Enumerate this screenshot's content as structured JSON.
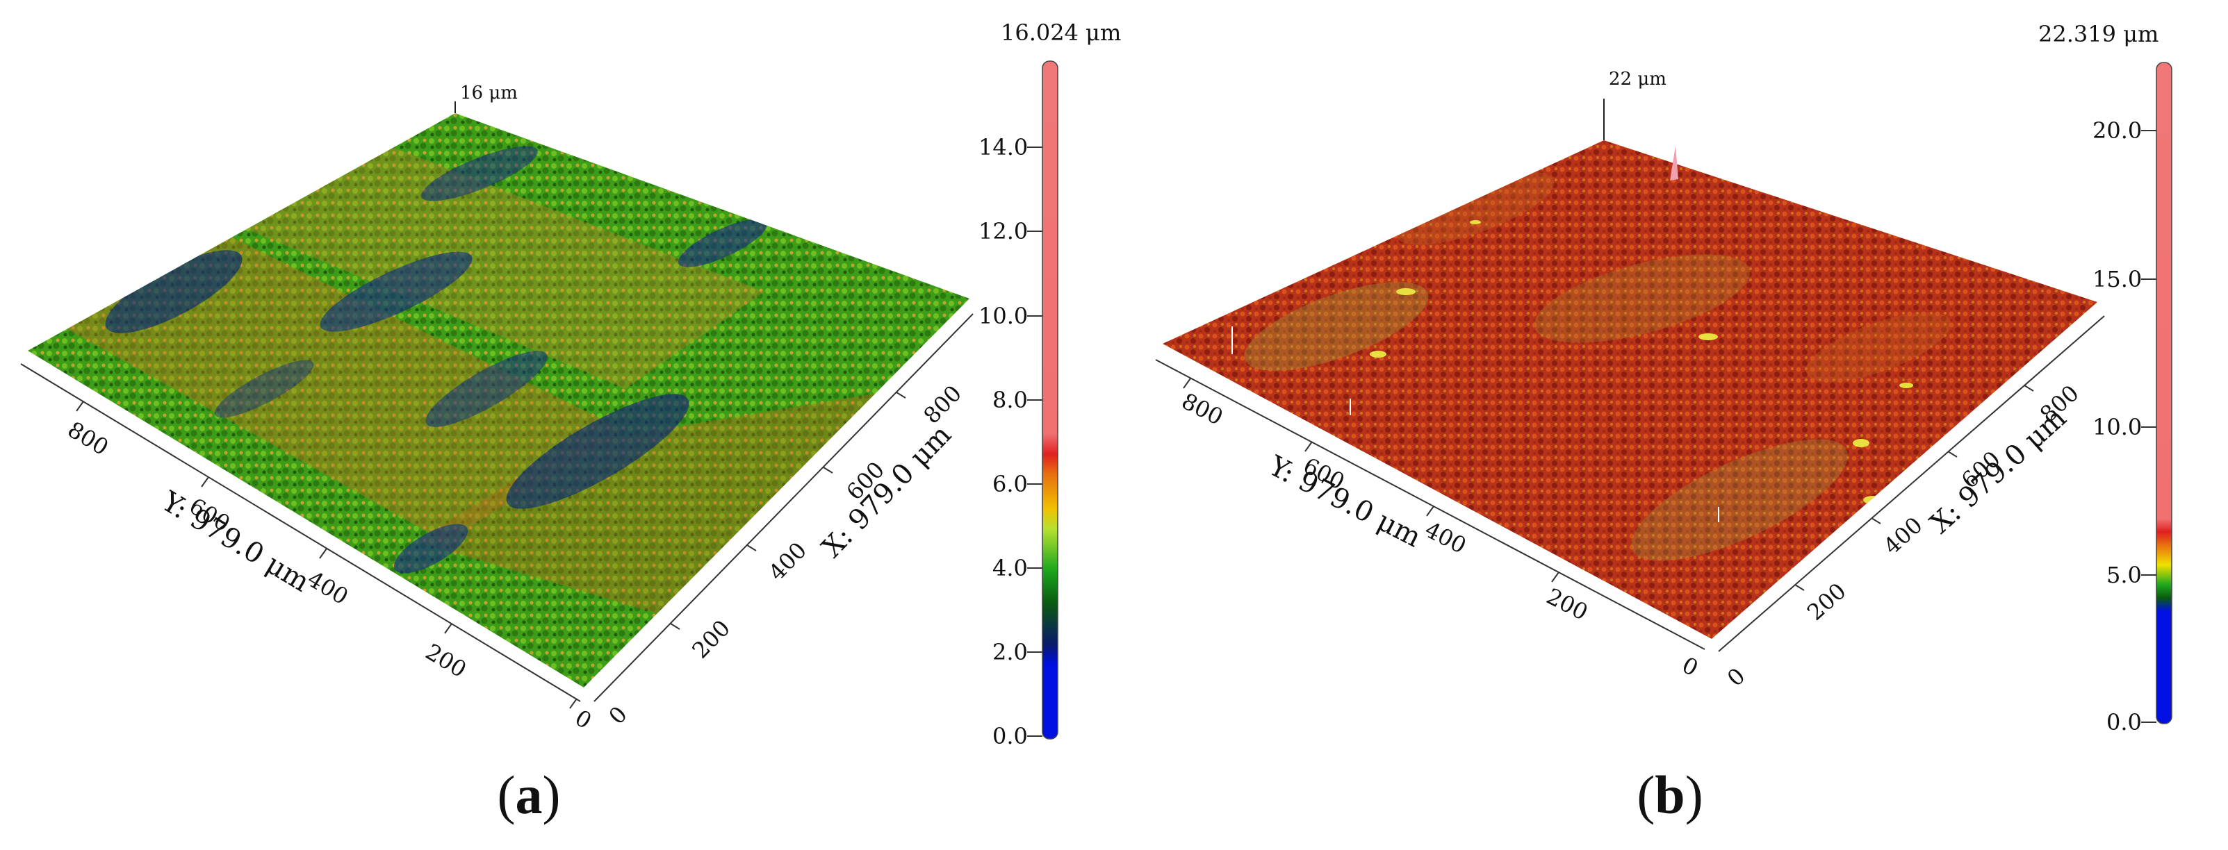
{
  "panels": [
    {
      "id": "a",
      "caption_letter": "a",
      "peak_label": "16 μm",
      "colorbar_max_label": "16.024 μm",
      "colorbar_ticks": [
        "14.0",
        "12.0",
        "10.0",
        "8.0",
        "6.0",
        "4.0",
        "2.0",
        "0.0"
      ],
      "y_axis_title": "Y: 979.0 μm",
      "x_axis_title": "X: 979.0 μm",
      "y_ticks": [
        "800",
        "600",
        "400",
        "200",
        "0"
      ],
      "x_ticks": [
        "0",
        "200",
        "400",
        "600",
        "800"
      ],
      "surface_colors": {
        "dominant": "#3a9a1a",
        "secondary": "#c07a20",
        "low": "#1a2a8a"
      }
    },
    {
      "id": "b",
      "caption_letter": "b",
      "peak_label": "22 μm",
      "colorbar_max_label": "22.319 μm",
      "colorbar_ticks": [
        "20.0",
        "15.0",
        "10.0",
        "5.0",
        "0.0"
      ],
      "y_axis_title": "Y: 979.0 μm",
      "x_axis_title": "X: 979.0 μm",
      "y_ticks": [
        "800",
        "600",
        "400",
        "200",
        "0"
      ],
      "x_ticks": [
        "0",
        "200",
        "400",
        "600",
        "800"
      ],
      "surface_colors": {
        "dominant": "#b8321a",
        "secondary": "#d46a1c",
        "low": "#6a8a20"
      }
    }
  ]
}
